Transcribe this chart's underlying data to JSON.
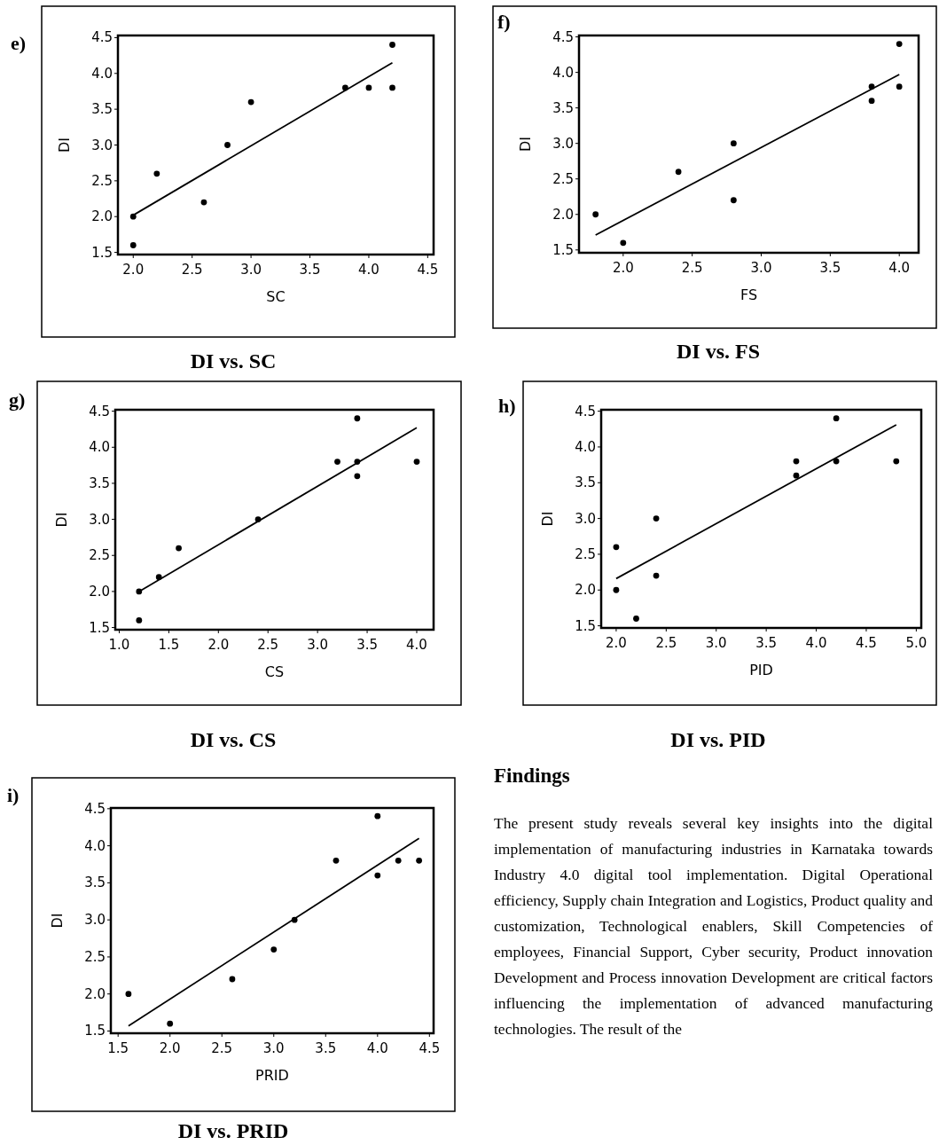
{
  "chart_data": [
    {
      "type": "scatter",
      "title": "DI vs. SC",
      "xlabel": "SC",
      "ylabel": "DI",
      "annotations": [
        "e)"
      ],
      "marker": "circle",
      "xlim": [
        1.87,
        4.55
      ],
      "ylim": [
        1.47,
        4.53
      ],
      "xticks": [
        {
          "value": 2,
          "label": "2.0"
        },
        {
          "value": 2.5,
          "label": "2.5"
        },
        {
          "value": 3,
          "label": "3.0"
        },
        {
          "value": 3.5,
          "label": "3.5"
        },
        {
          "value": 4,
          "label": "4.0"
        },
        {
          "value": 4.5,
          "label": "4.5"
        }
      ],
      "yticks": [
        {
          "value": 1.5,
          "label": "1.5"
        },
        {
          "value": 2,
          "label": "2.0"
        },
        {
          "value": 2.5,
          "label": "2.5"
        },
        {
          "value": 3,
          "label": "3.0"
        },
        {
          "value": 3.5,
          "label": "3.5"
        },
        {
          "value": 4,
          "label": "4.0"
        },
        {
          "value": 4.5,
          "label": "4.5"
        }
      ],
      "series": [
        {
          "type": "scatter",
          "color": "#000000",
          "x": [
            2.0,
            2.0,
            2.2,
            2.6,
            2.8,
            3.0,
            3.8,
            4.0,
            4.2,
            4.2
          ],
          "values": [
            1.6,
            2.0,
            2.6,
            2.2,
            3.0,
            3.6,
            3.8,
            3.8,
            3.8,
            4.4
          ]
        },
        {
          "type": "line",
          "color": "#000000",
          "marker": "none",
          "x": [
            2.0,
            4.2
          ],
          "values": [
            2.02,
            4.15
          ]
        }
      ]
    },
    {
      "type": "scatter",
      "title": "DI vs. FS",
      "xlabel": "FS",
      "ylabel": "DI",
      "annotations": [
        "f)"
      ],
      "marker": "circle",
      "xlim": [
        1.68,
        4.14
      ],
      "ylim": [
        1.46,
        4.52
      ],
      "xticks": [
        {
          "value": 2,
          "label": "2.0"
        },
        {
          "value": 2.5,
          "label": "2.5"
        },
        {
          "value": 3,
          "label": "3.0"
        },
        {
          "value": 3.5,
          "label": "3.5"
        },
        {
          "value": 4,
          "label": "4.0"
        }
      ],
      "yticks": [
        {
          "value": 1.5,
          "label": "1.5"
        },
        {
          "value": 2,
          "label": "2.0"
        },
        {
          "value": 2.5,
          "label": "2.5"
        },
        {
          "value": 3,
          "label": "3.0"
        },
        {
          "value": 3.5,
          "label": "3.5"
        },
        {
          "value": 4,
          "label": "4.0"
        },
        {
          "value": 4.5,
          "label": "4.5"
        }
      ],
      "series": [
        {
          "type": "scatter",
          "color": "#000000",
          "x": [
            1.8,
            2.0,
            2.4,
            2.8,
            2.8,
            3.8,
            3.8,
            4.0,
            4.0
          ],
          "values": [
            2.0,
            1.6,
            2.6,
            3.0,
            2.2,
            3.8,
            3.6,
            4.4,
            3.8
          ]
        },
        {
          "type": "line",
          "color": "#000000",
          "marker": "none",
          "x": [
            1.8,
            4.0
          ],
          "values": [
            1.71,
            3.97
          ]
        }
      ]
    },
    {
      "type": "scatter",
      "title": "DI vs. CS",
      "xlabel": "CS",
      "ylabel": "DI",
      "annotations": [
        "g)"
      ],
      "marker": "circle",
      "xlim": [
        0.96,
        4.17
      ],
      "ylim": [
        1.47,
        4.52
      ],
      "xticks": [
        {
          "value": 1,
          "label": "1.0"
        },
        {
          "value": 1.5,
          "label": "1.5"
        },
        {
          "value": 2,
          "label": "2.0"
        },
        {
          "value": 2.5,
          "label": "2.5"
        },
        {
          "value": 3,
          "label": "3.0"
        },
        {
          "value": 3.5,
          "label": "3.5"
        },
        {
          "value": 4,
          "label": "4.0"
        }
      ],
      "yticks": [
        {
          "value": 1.5,
          "label": "1.5"
        },
        {
          "value": 2,
          "label": "2.0"
        },
        {
          "value": 2.5,
          "label": "2.5"
        },
        {
          "value": 3,
          "label": "3.0"
        },
        {
          "value": 3.5,
          "label": "3.5"
        },
        {
          "value": 4,
          "label": "4.0"
        },
        {
          "value": 4.5,
          "label": "4.5"
        }
      ],
      "series": [
        {
          "type": "scatter",
          "color": "#000000",
          "x": [
            1.2,
            1.2,
            1.4,
            1.6,
            2.4,
            3.2,
            3.4,
            3.4,
            3.4,
            4.0
          ],
          "values": [
            1.6,
            2.0,
            2.2,
            2.6,
            3.0,
            3.8,
            4.4,
            3.8,
            3.6,
            3.8
          ]
        },
        {
          "type": "line",
          "color": "#000000",
          "marker": "none",
          "x": [
            1.2,
            4.0
          ],
          "values": [
            2.0,
            4.27
          ]
        }
      ]
    },
    {
      "type": "scatter",
      "title": "DI vs. PID",
      "xlabel": "PID",
      "ylabel": "DI",
      "annotations": [
        "h)"
      ],
      "marker": "circle",
      "xlim": [
        1.85,
        5.05
      ],
      "ylim": [
        1.47,
        4.52
      ],
      "xticks": [
        {
          "value": 2,
          "label": "2.0"
        },
        {
          "value": 2.5,
          "label": "2.5"
        },
        {
          "value": 3,
          "label": "3.0"
        },
        {
          "value": 3.5,
          "label": "3.5"
        },
        {
          "value": 4,
          "label": "4.0"
        },
        {
          "value": 4.5,
          "label": "4.5"
        },
        {
          "value": 5,
          "label": "5.0"
        }
      ],
      "yticks": [
        {
          "value": 1.5,
          "label": "1.5"
        },
        {
          "value": 2,
          "label": "2.0"
        },
        {
          "value": 2.5,
          "label": "2.5"
        },
        {
          "value": 3,
          "label": "3.0"
        },
        {
          "value": 3.5,
          "label": "3.5"
        },
        {
          "value": 4,
          "label": "4.0"
        },
        {
          "value": 4.5,
          "label": "4.5"
        }
      ],
      "series": [
        {
          "type": "scatter",
          "color": "#000000",
          "x": [
            2.0,
            2.0,
            2.2,
            2.4,
            2.4,
            3.8,
            3.8,
            4.2,
            4.2,
            4.8
          ],
          "values": [
            2.6,
            2.0,
            1.6,
            3.0,
            2.2,
            3.8,
            3.6,
            4.4,
            3.8,
            3.8
          ]
        },
        {
          "type": "line",
          "color": "#000000",
          "marker": "none",
          "x": [
            2.0,
            4.8
          ],
          "values": [
            2.16,
            4.31
          ]
        }
      ]
    },
    {
      "type": "scatter",
      "title": "DI vs. PRID",
      "xlabel": "PRID",
      "ylabel": "DI",
      "annotations": [
        "i)"
      ],
      "marker": "circle",
      "xlim": [
        1.43,
        4.54
      ],
      "ylim": [
        1.47,
        4.51
      ],
      "xticks": [
        {
          "value": 1.5,
          "label": "1.5"
        },
        {
          "value": 2,
          "label": "2.0"
        },
        {
          "value": 2.5,
          "label": "2.5"
        },
        {
          "value": 3,
          "label": "3.0"
        },
        {
          "value": 3.5,
          "label": "3.5"
        },
        {
          "value": 4,
          "label": "4.0"
        },
        {
          "value": 4.5,
          "label": "4.5"
        }
      ],
      "yticks": [
        {
          "value": 1.5,
          "label": "1.5"
        },
        {
          "value": 2,
          "label": "2.0"
        },
        {
          "value": 2.5,
          "label": "2.5"
        },
        {
          "value": 3,
          "label": "3.0"
        },
        {
          "value": 3.5,
          "label": "3.5"
        },
        {
          "value": 4,
          "label": "4.0"
        },
        {
          "value": 4.5,
          "label": "4.5"
        }
      ],
      "series": [
        {
          "type": "scatter",
          "color": "#000000",
          "x": [
            1.6,
            2.0,
            2.6,
            3.0,
            3.2,
            3.6,
            4.0,
            4.0,
            4.2,
            4.4
          ],
          "values": [
            2.0,
            1.6,
            2.2,
            2.6,
            3.0,
            3.8,
            4.4,
            3.6,
            3.8,
            3.8
          ]
        },
        {
          "type": "line",
          "color": "#000000",
          "marker": "none",
          "x": [
            1.6,
            4.4
          ],
          "values": [
            1.57,
            4.1
          ]
        }
      ]
    },
    {
      "type": "other",
      "title": "Findings",
      "annotations": [
        "The present study reveals several key insights into the digital implementation of manufacturing industries in Karnataka towards Industry 4.0 digital tool implementation. Digital Operational efficiency, Supply chain Integration and Logistics, Product quality and customization, Technological enablers, Skill Competencies of employees, Financial Support, Cyber security, Product innovation Development and Process innovation Development are critical factors influencing the implementation of advanced manufacturing technologies. The result of the"
      ]
    }
  ]
}
